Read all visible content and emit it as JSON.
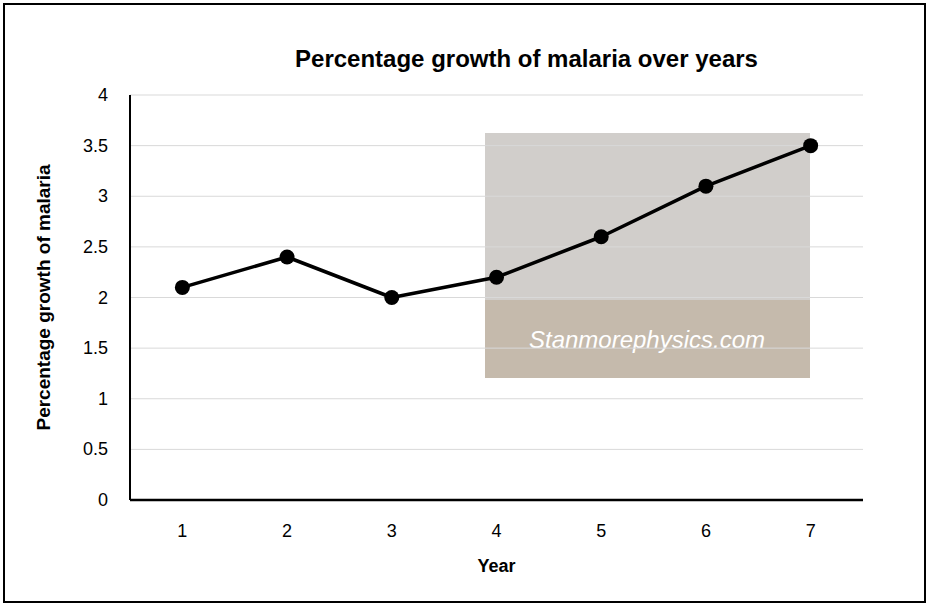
{
  "chart_data": {
    "type": "line",
    "title": "Percentage growth of malaria over years",
    "x_label": "Year",
    "y_label": "Percentage growth of malaria",
    "categories": [
      "1",
      "2",
      "3",
      "4",
      "5",
      "6",
      "7"
    ],
    "values": [
      2.1,
      2.4,
      2.0,
      2.2,
      2.6,
      3.1,
      3.5
    ],
    "color": "#000000",
    "marker": "circle",
    "line_style": "solid",
    "ylim": [
      0,
      4
    ],
    "yticks": [
      0,
      0.5,
      1,
      1.5,
      2,
      2.5,
      3,
      3.5,
      4
    ],
    "grid": true,
    "annotations": [
      "Stanmorephysics.com"
    ]
  }
}
